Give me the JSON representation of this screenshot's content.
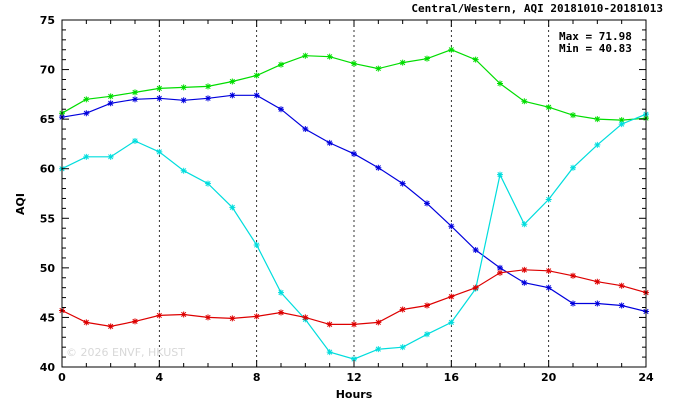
{
  "chart_data": {
    "type": "line",
    "title": "Central/Western, AQI 20181010-20181013",
    "xlabel": "Hours",
    "ylabel": "AQI",
    "xlim": [
      0,
      24
    ],
    "ylim": [
      40,
      75
    ],
    "xticks": [
      "0",
      "4",
      "8",
      "12",
      "16",
      "20",
      "24"
    ],
    "yticks": [
      "40",
      "45",
      "50",
      "55",
      "60",
      "65",
      "70",
      "75"
    ],
    "grid": true,
    "annotations": {
      "max": "Max = 71.98",
      "min": "Min = 40.83"
    },
    "watermark": "© 2026  ENVF, HKUST",
    "x": [
      0,
      1,
      2,
      3,
      4,
      5,
      6,
      7,
      8,
      9,
      10,
      11,
      12,
      13,
      14,
      15,
      16,
      17,
      18,
      19,
      20,
      21,
      22,
      23,
      24
    ],
    "series": [
      {
        "color": "#00dd00",
        "values": [
          65.6,
          67.0,
          67.3,
          67.7,
          68.1,
          68.2,
          68.3,
          68.8,
          69.4,
          70.5,
          71.4,
          71.3,
          70.6,
          70.1,
          70.7,
          71.1,
          72.0,
          71.0,
          68.6,
          66.8,
          66.2,
          65.4,
          65.0,
          64.9,
          65.1
        ]
      },
      {
        "color": "#0000dd",
        "values": [
          65.2,
          65.6,
          66.6,
          67.0,
          67.1,
          66.9,
          67.1,
          67.4,
          67.4,
          66.0,
          64.0,
          62.6,
          61.5,
          60.1,
          58.5,
          56.5,
          54.2,
          51.8,
          50.0,
          48.5,
          48.0,
          46.4,
          46.4,
          46.2,
          45.6
        ]
      },
      {
        "color": "#00dddd",
        "values": [
          60.0,
          61.2,
          61.2,
          62.8,
          61.7,
          59.8,
          58.5,
          56.1,
          52.3,
          47.5,
          44.8,
          41.5,
          40.8,
          41.8,
          42.0,
          43.3,
          44.5,
          47.9,
          59.4,
          54.4,
          56.9,
          60.1,
          62.4,
          64.5,
          65.5
        ]
      },
      {
        "color": "#dd0000",
        "values": [
          45.7,
          44.5,
          44.1,
          44.6,
          45.2,
          45.3,
          45.0,
          44.9,
          45.1,
          45.5,
          45.0,
          44.3,
          44.3,
          44.5,
          45.8,
          46.2,
          47.1,
          48.0,
          49.5,
          49.8,
          49.7,
          49.2,
          48.6,
          48.2,
          47.5
        ]
      }
    ]
  }
}
